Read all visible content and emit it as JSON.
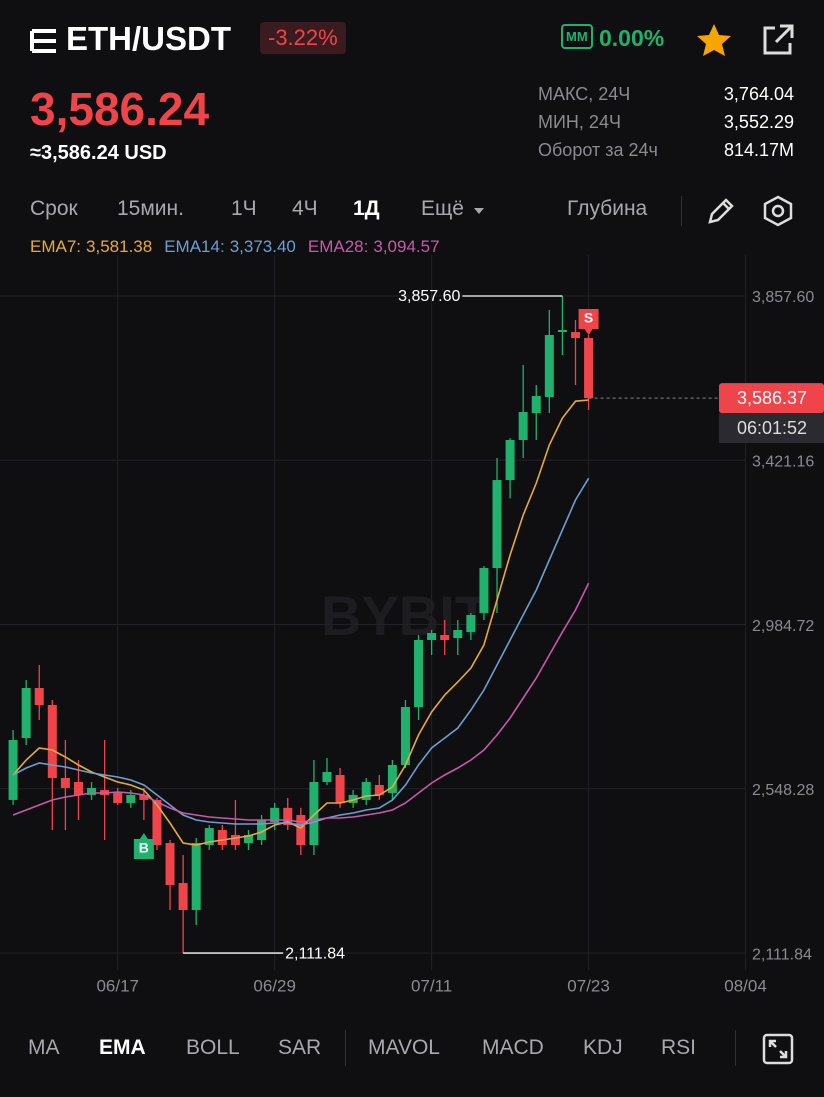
{
  "header": {
    "pair": "ETH/USDT",
    "change": "-3.22%",
    "mm_badge": "MM",
    "mm_value": "0.00%"
  },
  "price": {
    "last": "3,586.24",
    "usd": "≈3,586.24 USD"
  },
  "stats": [
    {
      "label": "МАКС, 24Ч",
      "value": "3,764.04"
    },
    {
      "label": "МИН, 24Ч",
      "value": "3,552.29"
    },
    {
      "label": "Оборот за 24ч",
      "value": "814.17M"
    }
  ],
  "timeframes": {
    "label": "Срок",
    "items": [
      "15мин.",
      "1Ч",
      "4Ч",
      "1Д",
      "Ещё"
    ],
    "active": "1Д",
    "depth": "Глубина"
  },
  "chart_data": {
    "type": "candlestick",
    "watermark": "BYBIT",
    "x": [
      "06/09",
      "06/10",
      "06/11",
      "06/12",
      "06/13",
      "06/14",
      "06/15",
      "06/16",
      "06/17",
      "06/18",
      "06/19",
      "06/20",
      "06/21",
      "06/22",
      "06/23",
      "06/24",
      "06/25",
      "06/26",
      "06/27",
      "06/28",
      "06/29",
      "06/30",
      "07/01",
      "07/02",
      "07/03",
      "07/04",
      "07/05",
      "07/06",
      "07/07",
      "07/08",
      "07/09",
      "07/10",
      "07/11",
      "07/12",
      "07/13",
      "07/14",
      "07/15",
      "07/16",
      "07/17",
      "07/18",
      "07/19",
      "07/20",
      "07/21",
      "07/22",
      "07/23"
    ],
    "open": [
      2518.6,
      2683.2,
      2816.1,
      2770.9,
      2577.0,
      2566.3,
      2531.9,
      2545.1,
      2539.9,
      2510.6,
      2531.9,
      2518.6,
      2404.2,
      2297.9,
      2226.2,
      2398.9,
      2438.7,
      2425.5,
      2404.2,
      2412.2,
      2460.0,
      2497.6,
      2478.6,
      2398.9,
      2566.3,
      2584.9,
      2510.6,
      2518.6,
      2558.4,
      2537.2,
      2611.5,
      2765.6,
      2943.6,
      2956.9,
      2948.9,
      2964.8,
      3015.3,
      3134.9,
      3368.7,
      3475.0,
      3546.7,
      3589.2,
      3761.9,
      3761.9,
      3746.0
    ],
    "high": [
      2704.5,
      2837.3,
      2877.2,
      2784.2,
      2677.9,
      2624.8,
      2566.3,
      2677.9,
      2550.4,
      2545.1,
      2550.4,
      2523.9,
      2412.2,
      2372.3,
      2417.5,
      2452.0,
      2452.0,
      2518.6,
      2438.7,
      2478.6,
      2510.6,
      2523.9,
      2497.6,
      2624.8,
      2630.1,
      2603.5,
      2545.1,
      2577.0,
      2584.9,
      2624.8,
      2784.2,
      2956.9,
      2970.2,
      2996.7,
      2996.7,
      3015.3,
      3140.2,
      3427.2,
      3480.0,
      3674.3,
      3621.1,
      3820.4,
      3857.6,
      3793.8,
      3754.0
    ],
    "low": [
      2505.3,
      2664.6,
      2731.1,
      2438.7,
      2438.7,
      2465.3,
      2518.6,
      2412.2,
      2505.3,
      2497.6,
      2465.3,
      2385.6,
      2226.2,
      2111.84,
      2186.3,
      2385.6,
      2385.6,
      2385.6,
      2385.6,
      2398.9,
      2438.7,
      2438.7,
      2372.3,
      2372.3,
      2558.4,
      2497.6,
      2497.6,
      2505.3,
      2518.6,
      2518.6,
      2603.5,
      2731.1,
      2903.8,
      2903.8,
      2903.8,
      2943.6,
      2996.7,
      3015.3,
      3320.0,
      3427.2,
      3475.0,
      3546.7,
      3700.8,
      3621.1,
      3554.7
    ],
    "close": [
      2677.9,
      2816.1,
      2770.9,
      2577.0,
      2550.4,
      2531.9,
      2550.4,
      2531.9,
      2510.6,
      2531.9,
      2518.6,
      2398.9,
      2292.6,
      2226.2,
      2404.2,
      2444.0,
      2398.9,
      2398.9,
      2425.5,
      2465.3,
      2497.6,
      2452.0,
      2398.9,
      2566.3,
      2592.9,
      2510.6,
      2531.9,
      2566.3,
      2531.9,
      2611.5,
      2765.6,
      2943.6,
      2962.2,
      2943.6,
      2970.2,
      3010.0,
      3134.9,
      3368.7,
      3475.0,
      3549.4,
      3591.9,
      3754.0,
      3767.3,
      3746.0,
      3586.37
    ],
    "up_color": "#20b26c",
    "down_color": "#ef454a",
    "series": [
      {
        "name": "EMA7:",
        "color": "#e8a93c",
        "legend_value": "3,581.38",
        "values": [
          2584.9,
          2624.8,
          2656.7,
          2651.3,
          2632.8,
          2611.5,
          2592.9,
          2579.6,
          2566.3,
          2558.4,
          2545.1,
          2505.2,
          2457.4,
          2404.2,
          2398.9,
          2406.9,
          2412.2,
          2417.5,
          2422.8,
          2433.5,
          2452.1,
          2460.0,
          2444.1,
          2478.6,
          2510.5,
          2510.5,
          2518.5,
          2529.1,
          2531.8,
          2553.0,
          2611.5,
          2691.2,
          2752.3,
          2797.5,
          2832.0,
          2869.2,
          2930.3,
          3049.9,
          3169.5,
          3275.7,
          3360.8,
          3461.7,
          3533.5,
          3578.0,
          3581.38
        ]
      },
      {
        "name": "EMA14:",
        "color": "#6b9fd0",
        "legend_value": "3,373.40",
        "values": [
          2584.9,
          2603.5,
          2616.8,
          2611.5,
          2606.2,
          2598.2,
          2590.2,
          2584.9,
          2579.6,
          2571.6,
          2558.4,
          2531.8,
          2505.2,
          2478.6,
          2465.4,
          2460.0,
          2457.4,
          2454.7,
          2454.7,
          2454.7,
          2457.4,
          2457.4,
          2452.1,
          2460.0,
          2470.7,
          2478.6,
          2484.0,
          2491.9,
          2497.2,
          2518.5,
          2558.4,
          2611.5,
          2656.7,
          2683.2,
          2709.8,
          2757.6,
          2810.8,
          2877.2,
          2943.6,
          3010.0,
          3076.5,
          3156.2,
          3235.9,
          3315.6,
          3373.4
        ]
      },
      {
        "name": "EMA28:",
        "color": "#c75aa6",
        "legend_value": "3,094.57",
        "values": [
          2478.6,
          2491.9,
          2505.2,
          2518.5,
          2526.5,
          2531.8,
          2537.1,
          2537.1,
          2539.8,
          2537.1,
          2531.8,
          2513.2,
          2497.2,
          2484.0,
          2478.6,
          2473.3,
          2470.7,
          2468.0,
          2465.4,
          2465.4,
          2465.4,
          2465.4,
          2460.0,
          2465.4,
          2470.7,
          2470.7,
          2473.3,
          2478.6,
          2484.0,
          2491.9,
          2510.5,
          2537.1,
          2563.7,
          2584.9,
          2603.5,
          2624.8,
          2651.3,
          2691.2,
          2736.4,
          2789.5,
          2842.7,
          2903.8,
          2964.9,
          3023.3,
          3094.57
        ]
      }
    ],
    "ylim": [
      2066.8,
      3953.3
    ],
    "yticks": [
      {
        "value": 2111.84,
        "label": "2,111.84"
      },
      {
        "value": 2548.28,
        "label": "2,548.28"
      },
      {
        "value": 2984.72,
        "label": "2,984.72"
      },
      {
        "value": 3421.16,
        "label": "3,421.16"
      },
      {
        "value": 3857.6,
        "label": "3,857.60"
      }
    ],
    "xlim": [
      "06/08",
      "08/10"
    ],
    "xticks": [
      "06/17",
      "06/29",
      "07/11",
      "07/23",
      "08/04"
    ],
    "grid": true,
    "high_annotation": {
      "x": "07/21",
      "value": 3857.6,
      "label": "3,857.60"
    },
    "low_annotation": {
      "x": "06/22",
      "value": 2111.84,
      "label": "2,111.84"
    },
    "last_price": {
      "value": 3586.37,
      "label": "3,586.37"
    },
    "countdown": "06:01:52",
    "markers": [
      {
        "x": "06/19",
        "label": "B"
      },
      {
        "x": "07/23",
        "label": "S"
      }
    ]
  },
  "indicators": {
    "items": [
      "MA",
      "EMA",
      "BOLL",
      "SAR",
      "MAVOL",
      "MACD",
      "KDJ",
      "RSI"
    ],
    "active": "EMA"
  }
}
